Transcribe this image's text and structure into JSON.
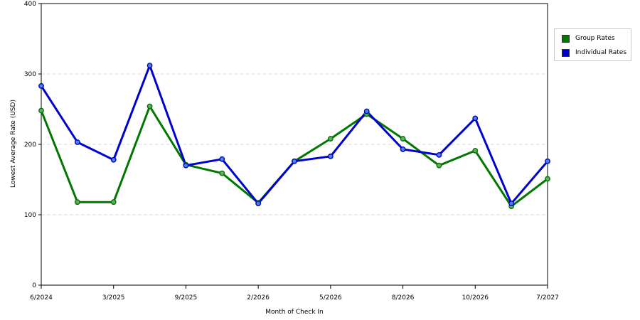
{
  "chart_data": {
    "type": "line",
    "xlabel": "Month of Check In",
    "ylabel": "Lowest Average Rate (USD)",
    "ylim": [
      0,
      400
    ],
    "yticks": [
      0,
      100,
      200,
      300,
      400
    ],
    "x_tick_labels": [
      "6/2024",
      "3/2025",
      "9/2025",
      "2/2026",
      "5/2026",
      "8/2026",
      "10/2026",
      "7/2027"
    ],
    "grid": "horizontal dashed",
    "legend_position": "top-right",
    "series": [
      {
        "name": "Group Rates",
        "color": "#007700",
        "values": [
          248,
          118,
          118,
          254,
          171,
          159,
          117,
          176,
          208,
          243,
          208,
          170,
          191,
          112,
          151
        ]
      },
      {
        "name": "Individual Rates",
        "color": "#0000cc",
        "values": [
          283,
          203,
          178,
          312,
          170,
          179,
          116,
          176,
          183,
          247,
          193,
          185,
          237,
          116,
          176
        ]
      }
    ]
  }
}
